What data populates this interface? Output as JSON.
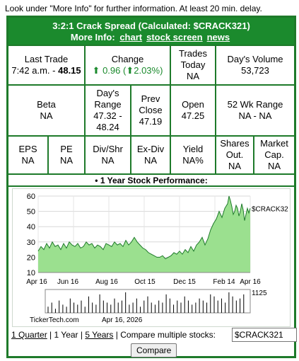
{
  "notice": "Look under \"More Info\" for further information. At least 20 min. delay.",
  "header": {
    "title": "3:2:1 Crack Spread (Calculated: $CRACK321)",
    "more_info_label": "More Info:",
    "links": [
      "chart",
      "stock screen",
      "news"
    ]
  },
  "stats": {
    "last_trade": {
      "label": "Last Trade",
      "time": "7:42 a.m.",
      "sep": " - ",
      "price": "48.15"
    },
    "change": {
      "label": "Change",
      "arrow1": "⬆",
      "value": "0.96",
      "lparen": " (",
      "arrow2": "⬆",
      "pct": "2.03%",
      "rparen": ")"
    },
    "trades_today": {
      "label1": "Trades",
      "label2": "Today",
      "value": "NA"
    },
    "days_volume": {
      "label": "Day's Volume",
      "value": "53,723"
    },
    "beta": {
      "label": "Beta",
      "value": "NA"
    },
    "days_range": {
      "label1": "Day's",
      "label2": "Range",
      "line1": "47.32 -",
      "line2": "48.24"
    },
    "prev_close": {
      "label1": "Prev",
      "label2": "Close",
      "value": "47.19"
    },
    "open": {
      "label": "Open",
      "value": "47.25"
    },
    "wk52_range": {
      "label": "52 Wk Range",
      "value": "NA - NA"
    },
    "eps": {
      "label": "EPS",
      "value": "NA"
    },
    "pe": {
      "label": "PE",
      "value": "NA"
    },
    "div_shr": {
      "label": "Div/Shr",
      "value": "NA"
    },
    "ex_div": {
      "label": "Ex-Div",
      "value": "NA"
    },
    "yield": {
      "label": "Yield",
      "value": "NA%"
    },
    "shares_out": {
      "label1": "Shares",
      "label2": "Out.",
      "value": "NA"
    },
    "market_cap": {
      "label1": "Market",
      "label2": "Cap.",
      "value": "NA"
    }
  },
  "performance_label": "• 1 Year Stock Performance:",
  "chart_data": {
    "type": "area",
    "symbol_label": "$CRACK32",
    "y_ticks": [
      60,
      50,
      40,
      30,
      20,
      10
    ],
    "ylim": [
      10,
      60
    ],
    "x_ticks": [
      "Apr 16",
      "Jun 16",
      "Aug 16",
      "Oct 15",
      "Dec 15",
      "Feb 14",
      "Apr 16"
    ],
    "x": [
      0,
      4,
      8,
      12,
      16,
      20,
      24,
      28,
      32,
      36,
      40,
      44,
      48,
      52,
      56,
      60,
      64,
      68,
      72,
      76,
      80,
      84,
      88,
      92,
      96,
      100,
      104,
      108,
      112,
      116,
      120,
      124,
      128,
      132,
      136,
      140,
      144,
      148,
      152,
      156,
      160,
      164,
      168,
      172,
      176,
      180,
      184,
      188,
      192,
      196,
      200,
      204,
      208,
      212,
      216,
      220,
      224,
      228,
      232,
      236,
      240,
      244,
      248,
      252,
      256,
      260,
      264,
      268,
      270,
      272,
      274,
      276,
      278,
      280,
      282,
      284,
      286,
      288,
      290,
      292,
      294,
      296,
      298,
      300
    ],
    "values": [
      24,
      27,
      25,
      29,
      26,
      30,
      27,
      28,
      25,
      29,
      26,
      30,
      28,
      27,
      29,
      26,
      27,
      30,
      28,
      29,
      26,
      28,
      27,
      25,
      29,
      28,
      27,
      30,
      28,
      29,
      27,
      31,
      28,
      30,
      33,
      30,
      28,
      26,
      25,
      23,
      22,
      21,
      20,
      20,
      21,
      19,
      20,
      21,
      23,
      22,
      24,
      22,
      25,
      23,
      27,
      24,
      28,
      30,
      33,
      28,
      32,
      38,
      42,
      45,
      50,
      46,
      52,
      55,
      60,
      57,
      53,
      48,
      50,
      54,
      52,
      47,
      50,
      55,
      51,
      44,
      48,
      52,
      49,
      52
    ],
    "volume_label": "1125",
    "volume_bars": [
      3,
      5,
      2,
      6,
      4,
      3,
      7,
      5,
      4,
      6,
      3,
      8,
      5,
      4,
      9,
      6,
      5,
      4,
      7,
      5,
      6,
      10,
      4,
      5,
      7,
      3,
      6,
      8,
      5,
      4,
      6,
      5,
      9,
      7,
      4,
      6,
      5,
      8,
      6,
      4,
      5,
      7,
      6,
      5,
      9,
      8,
      6,
      7,
      5,
      10,
      8,
      6,
      7,
      9
    ],
    "watermark": "TickerTech.com",
    "date": "Apr 16, 2026"
  },
  "range_links": [
    "1 Quarter",
    "1 Year",
    "5 Years"
  ],
  "separator": "|",
  "compare": {
    "label": "Compare multiple stocks:",
    "input_value": "$CRACK321",
    "button": "Compare"
  }
}
